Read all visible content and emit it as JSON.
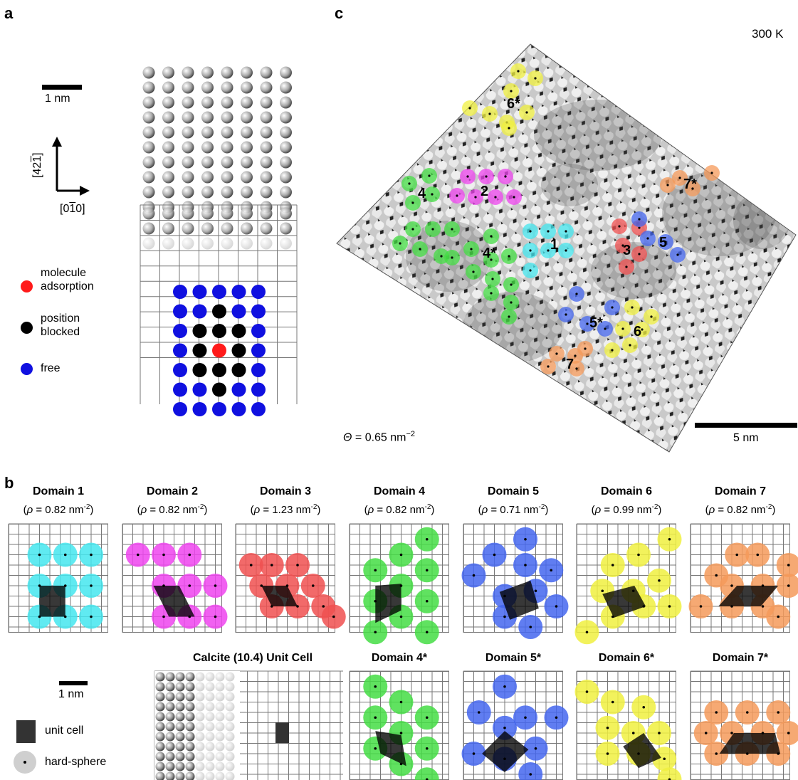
{
  "panels": {
    "a": "a",
    "b": "b",
    "c": "c"
  },
  "panel_a": {
    "scalebar_label": "1 nm",
    "axis_up_label": "[42̅1̅]",
    "axis_up_parts": [
      "[42",
      "1",
      "]"
    ],
    "axis_right_parts": [
      "[0",
      "1",
      "0]"
    ],
    "legend": [
      {
        "label_lines": [
          "molecule",
          "adsorption"
        ],
        "color": "#ff1a1a"
      },
      {
        "label_lines": [
          "position",
          "blocked"
        ],
        "color": "#000000"
      },
      {
        "label_lines": [
          "free"
        ],
        "color": "#1010e0"
      }
    ]
  },
  "panel_c": {
    "temperature": "300 K",
    "coverage_symbol": "Θ",
    "coverage_value": " = 0.65 nm",
    "coverage_exp": "−2",
    "scalebar_label": "5 nm",
    "domain_labels": [
      "6*",
      "2",
      "4",
      "7*",
      "1",
      "3",
      "5",
      "4*",
      "5*",
      "6",
      "7"
    ]
  },
  "panel_b": {
    "domains_top": [
      {
        "title": "Domain 1",
        "rho": "0.82",
        "color": "#44e6ee"
      },
      {
        "title": "Domain 2",
        "rho": "0.82",
        "color": "#ee44ee"
      },
      {
        "title": "Domain 3",
        "rho": "1.23",
        "color": "#f05050"
      },
      {
        "title": "Domain 4",
        "rho": "0.82",
        "color": "#44dd44"
      },
      {
        "title": "Domain 5",
        "rho": "0.71",
        "color": "#4466ee"
      },
      {
        "title": "Domain 6",
        "rho": "0.99",
        "color": "#f0f040"
      },
      {
        "title": "Domain 7",
        "rho": "0.82",
        "color": "#f59a5a"
      }
    ],
    "domains_bottom": [
      {
        "title": "Domain 4*",
        "color": "#44dd44"
      },
      {
        "title": "Domain 5*",
        "color": "#4466ee"
      },
      {
        "title": "Domain 6*",
        "color": "#f0f040"
      },
      {
        "title": "Domain 7*",
        "color": "#f59a5a"
      }
    ],
    "rho_prefix": "(",
    "rho_symbol": "ρ",
    "rho_mid": " = ",
    "rho_unit": " nm",
    "rho_exp": "-2",
    "rho_suffix": ")",
    "calcite_title": "Calcite (10.4) Unit Cell",
    "scalebar_label": "1 nm",
    "legend_unit_cell": "unit cell",
    "legend_hard_sphere": "hard-sphere"
  }
}
